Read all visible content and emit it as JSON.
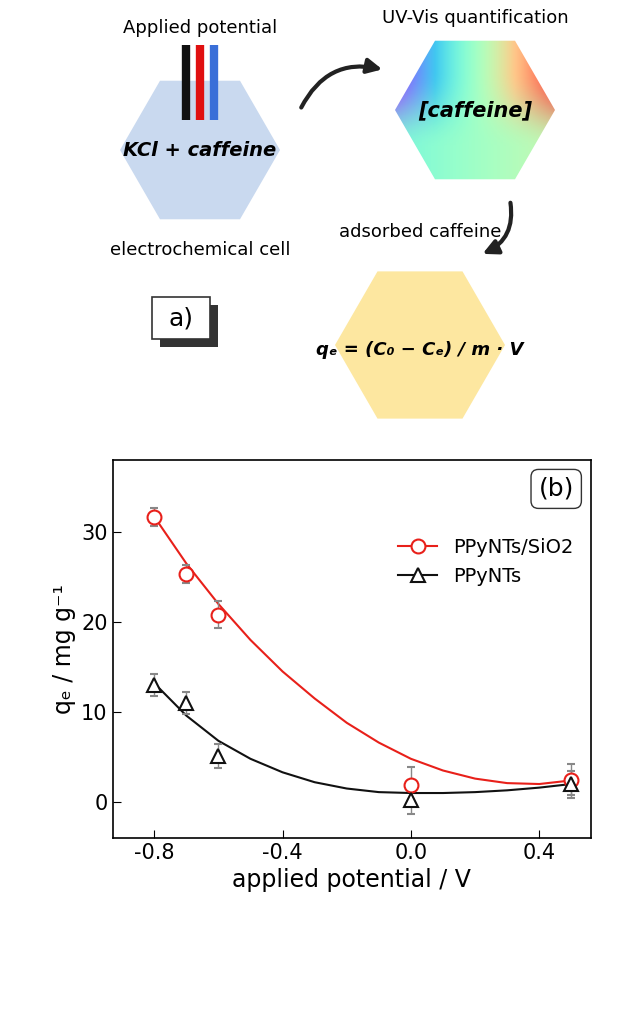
{
  "diagram": {
    "cell": {
      "top_label": "Applied potential",
      "content": "KCl + caffeine",
      "bottom_label": "electrochemical cell"
    },
    "uvvis": {
      "top_label": "UV-Vis quantification",
      "content": "[caffeine]"
    },
    "adsorbed": {
      "top_label": "adsorbed caffeine",
      "equation": "qₑ = (C₀ − Cₑ) / m · V"
    },
    "panel_label": "a)"
  },
  "chart_data": {
    "type": "scatter",
    "panel_label": "(b)",
    "x_label": "applied potential / V",
    "y_label": "qₑ / mg g⁻¹",
    "xlim": [
      -0.93,
      0.56
    ],
    "xticks": [
      -0.8,
      -0.4,
      0.0,
      0.4
    ],
    "ylim": [
      -4,
      38
    ],
    "yticks": [
      0,
      10,
      20,
      30
    ],
    "legend": "upper right",
    "grid": false,
    "series": [
      {
        "name": "PPyNTs/SiO2",
        "color": "#e8201a",
        "marker": "circle",
        "x": [
          -0.8,
          -0.7,
          -0.6,
          0.0,
          0.5
        ],
        "values": [
          31.7,
          25.3,
          20.8,
          1.9,
          2.5
        ],
        "errors": [
          1.0,
          1.0,
          1.5,
          2.0,
          1.7
        ],
        "fit": {
          "x": [
            -0.8,
            -0.7,
            -0.6,
            -0.5,
            -0.4,
            -0.3,
            -0.2,
            -0.1,
            0.0,
            0.1,
            0.2,
            0.3,
            0.4,
            0.5
          ],
          "values": [
            31.7,
            26.5,
            22.0,
            18.0,
            14.5,
            11.5,
            8.8,
            6.6,
            4.8,
            3.5,
            2.6,
            2.1,
            2.0,
            2.4
          ]
        }
      },
      {
        "name": "PPyNTs",
        "color": "#111111",
        "marker": "triangle",
        "x": [
          -0.8,
          -0.7,
          -0.6,
          0.0,
          0.5
        ],
        "values": [
          13.0,
          11.0,
          5.1,
          0.2,
          2.0
        ],
        "errors": [
          1.2,
          1.2,
          1.3,
          1.5,
          1.5
        ],
        "fit": {
          "x": [
            -0.8,
            -0.7,
            -0.6,
            -0.5,
            -0.4,
            -0.3,
            -0.2,
            -0.1,
            0.0,
            0.1,
            0.2,
            0.3,
            0.4,
            0.5
          ],
          "values": [
            13.2,
            9.6,
            6.8,
            4.8,
            3.3,
            2.2,
            1.5,
            1.1,
            1.0,
            1.0,
            1.1,
            1.3,
            1.6,
            2.0
          ]
        }
      }
    ]
  }
}
